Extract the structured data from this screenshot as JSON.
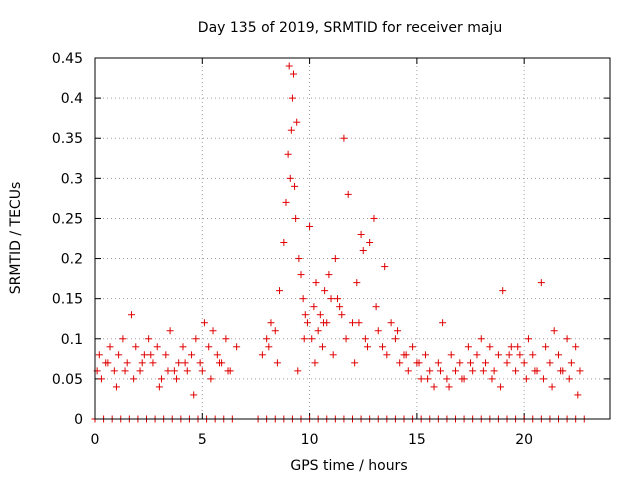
{
  "chart_data": {
    "type": "scatter",
    "title": "Day 135 of 2019, SRMTID for receiver maju",
    "xlabel": "GPS time / hours",
    "ylabel": "SRMTID / TECUs",
    "xlim": [
      0,
      24
    ],
    "ylim": [
      0,
      0.45
    ],
    "xticks": [
      0,
      5,
      10,
      15,
      20
    ],
    "xtick_labels": [
      "0",
      "5",
      "10",
      "15",
      "20"
    ],
    "yticks": [
      0,
      0.05,
      0.1,
      0.15,
      0.2,
      0.25,
      0.3,
      0.35,
      0.4,
      0.45
    ],
    "ytick_labels": [
      "0",
      "0.05",
      "0.1",
      "0.15",
      "0.2",
      "0.25",
      "0.3",
      "0.35",
      "0.4",
      "0.45"
    ],
    "grid": true,
    "marker": "+",
    "color": "#e00000",
    "series": [
      {
        "name": "SRMTID",
        "x": [
          0.1,
          0.3,
          0.5,
          0.7,
          0.9,
          1.1,
          1.3,
          1.5,
          1.7,
          1.9,
          2.1,
          2.3,
          2.5,
          2.7,
          2.9,
          3.1,
          3.3,
          3.5,
          3.7,
          3.9,
          4.1,
          4.3,
          4.5,
          4.7,
          4.9,
          5.1,
          5.3,
          5.5,
          5.7,
          5.9,
          6.1,
          6.3,
          6.6,
          7.8,
          8.0,
          8.2,
          8.4,
          8.6,
          8.8,
          8.9,
          9.0,
          9.05,
          9.1,
          9.15,
          9.2,
          9.25,
          9.3,
          9.35,
          9.4,
          9.5,
          9.6,
          9.7,
          9.8,
          9.9,
          10.0,
          10.1,
          10.2,
          10.3,
          10.4,
          10.5,
          10.6,
          10.7,
          10.8,
          10.9,
          11.0,
          11.2,
          11.4,
          11.5,
          11.6,
          11.8,
          12.0,
          12.2,
          12.4,
          12.5,
          12.6,
          12.8,
          13.0,
          13.2,
          13.4,
          13.6,
          13.8,
          14.0,
          14.2,
          14.4,
          14.6,
          14.8,
          15.0,
          15.2,
          15.4,
          15.6,
          15.8,
          16.0,
          16.2,
          16.4,
          16.6,
          16.8,
          17.0,
          17.2,
          17.4,
          17.6,
          17.8,
          18.0,
          18.2,
          18.4,
          18.6,
          18.8,
          19.0,
          19.2,
          19.4,
          19.6,
          19.8,
          20.0,
          20.2,
          20.4,
          20.6,
          20.8,
          21.0,
          21.2,
          21.4,
          21.6,
          21.8,
          22.0,
          22.2,
          22.4,
          22.6,
          0.2,
          0.6,
          1.0,
          1.4,
          1.8,
          2.2,
          2.6,
          3.0,
          3.4,
          3.8,
          4.2,
          4.6,
          5.0,
          5.4,
          5.8,
          6.2,
          8.1,
          8.5,
          9.45,
          9.75,
          10.25,
          10.65,
          11.1,
          11.3,
          11.7,
          12.1,
          12.3,
          12.7,
          13.1,
          13.5,
          14.1,
          14.5,
          15.1,
          15.5,
          16.1,
          16.5,
          17.1,
          17.5,
          18.1,
          18.5,
          18.9,
          19.3,
          19.7,
          20.1,
          20.5,
          20.9,
          21.3,
          21.7,
          22.1,
          22.5
        ],
        "y": [
          0.06,
          0.05,
          0.07,
          0.09,
          0.06,
          0.08,
          0.1,
          0.07,
          0.13,
          0.09,
          0.06,
          0.08,
          0.1,
          0.07,
          0.09,
          0.05,
          0.08,
          0.11,
          0.06,
          0.07,
          0.09,
          0.06,
          0.08,
          0.1,
          0.07,
          0.12,
          0.09,
          0.11,
          0.08,
          0.07,
          0.1,
          0.06,
          0.09,
          0.08,
          0.1,
          0.12,
          0.11,
          0.16,
          0.22,
          0.27,
          0.33,
          0.44,
          0.3,
          0.36,
          0.4,
          0.43,
          0.29,
          0.25,
          0.37,
          0.2,
          0.18,
          0.15,
          0.13,
          0.12,
          0.24,
          0.1,
          0.14,
          0.17,
          0.11,
          0.13,
          0.09,
          0.16,
          0.12,
          0.18,
          0.15,
          0.2,
          0.14,
          0.13,
          0.35,
          0.28,
          0.12,
          0.17,
          0.23,
          0.21,
          0.1,
          0.22,
          0.25,
          0.11,
          0.09,
          0.08,
          0.12,
          0.1,
          0.07,
          0.08,
          0.06,
          0.09,
          0.07,
          0.05,
          0.08,
          0.06,
          0.04,
          0.07,
          0.12,
          0.05,
          0.08,
          0.06,
          0.07,
          0.05,
          0.09,
          0.06,
          0.08,
          0.1,
          0.07,
          0.09,
          0.06,
          0.08,
          0.16,
          0.07,
          0.09,
          0.06,
          0.08,
          0.07,
          0.1,
          0.08,
          0.06,
          0.17,
          0.09,
          0.07,
          0.11,
          0.08,
          0.06,
          0.1,
          0.07,
          0.09,
          0.06,
          0.08,
          0.07,
          0.04,
          0.06,
          0.05,
          0.07,
          0.08,
          0.04,
          0.06,
          0.05,
          0.07,
          0.03,
          0.06,
          0.05,
          0.07,
          0.06,
          0.09,
          0.07,
          0.06,
          0.1,
          0.07,
          0.12,
          0.08,
          0.15,
          0.1,
          0.07,
          0.12,
          0.09,
          0.14,
          0.19,
          0.11,
          0.08,
          0.07,
          0.05,
          0.06,
          0.04,
          0.05,
          0.07,
          0.06,
          0.05,
          0.04,
          0.08,
          0.09,
          0.05,
          0.06,
          0.05,
          0.04,
          0.06,
          0.05,
          0.03
        ],
        "zero_flag_x": [
          0.0,
          0.4,
          0.8,
          1.2,
          1.6,
          2.0,
          2.4,
          2.8,
          3.2,
          3.6,
          4.0,
          4.4,
          4.8,
          5.2,
          5.6,
          6.0,
          6.4,
          7.6,
          8.0,
          8.4,
          8.8,
          9.2,
          9.6,
          10.0,
          10.4,
          10.8,
          11.2,
          11.6,
          12.0,
          12.4,
          12.8,
          13.2,
          13.6,
          14.0,
          14.4,
          14.8,
          15.2,
          15.6,
          16.0,
          16.4,
          16.8,
          17.2,
          17.6,
          18.0,
          18.4,
          18.8,
          19.2,
          19.6,
          20.0,
          20.4,
          20.8,
          21.2,
          21.6,
          22.0,
          22.4,
          22.8
        ],
        "zero_flag_y": 0
      }
    ]
  }
}
